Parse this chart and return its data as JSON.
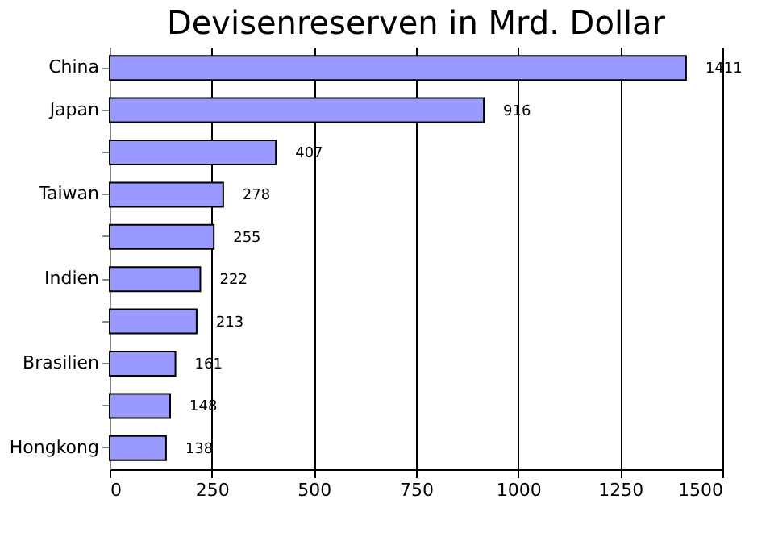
{
  "chart_data": {
    "type": "bar",
    "orientation": "horizontal",
    "title": "Devisenreserven in Mrd. Dollar",
    "categories": [
      "China",
      "Japan",
      null,
      "Taiwan",
      null,
      "Indien",
      null,
      "Brasilien",
      null,
      "Hongkong"
    ],
    "values": [
      1411,
      916,
      407,
      278,
      255,
      222,
      213,
      161,
      148,
      138
    ],
    "color": "#9999ff",
    "xlim": [
      0,
      1500
    ],
    "xticks": [
      0,
      250,
      500,
      750,
      1000,
      1250,
      1500
    ],
    "grid": "x",
    "data_labels": true
  }
}
